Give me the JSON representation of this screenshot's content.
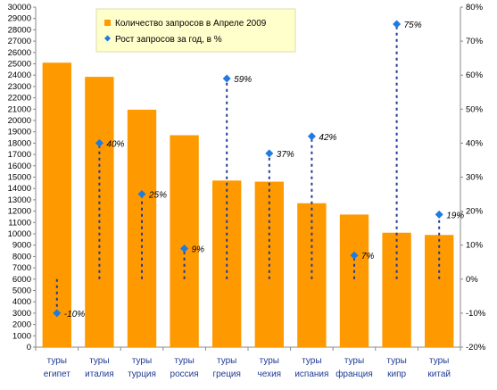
{
  "chart_data": {
    "type": "bar",
    "categories": [
      [
        "туры",
        "египет"
      ],
      [
        "туры",
        "италия"
      ],
      [
        "туры",
        "турция"
      ],
      [
        "туры",
        "россия"
      ],
      [
        "туры",
        "греция"
      ],
      [
        "туры",
        "чехия"
      ],
      [
        "туры",
        "испания"
      ],
      [
        "туры",
        "франция"
      ],
      [
        "туры",
        "кипр"
      ],
      [
        "туры",
        "китай"
      ]
    ],
    "series": [
      {
        "name": "Количество запросов в Апреле 2009",
        "type": "bar",
        "axis": "left",
        "color": "#FF9900",
        "values": [
          25100,
          23850,
          20950,
          18700,
          14700,
          14600,
          12700,
          11700,
          10100,
          9900
        ]
      },
      {
        "name": "Рост запросов за год, в %",
        "type": "scatter",
        "axis": "right",
        "color": "#1E7BE0",
        "marker": "diamond",
        "drop_lines": "dashed to 0%",
        "values": [
          -10,
          40,
          25,
          9,
          59,
          37,
          42,
          7,
          75,
          19
        ],
        "labels": [
          "-10%",
          "40%",
          "25%",
          "9%",
          "59%",
          "37%",
          "42%",
          "7%",
          "75%",
          "19%"
        ]
      }
    ],
    "y_left": {
      "min": 0,
      "max": 30000,
      "step": 1000
    },
    "y_right": {
      "min": -20,
      "max": 80,
      "step": 10,
      "format": "percent"
    },
    "legend": {
      "placement": "top-center"
    },
    "grid": false
  }
}
